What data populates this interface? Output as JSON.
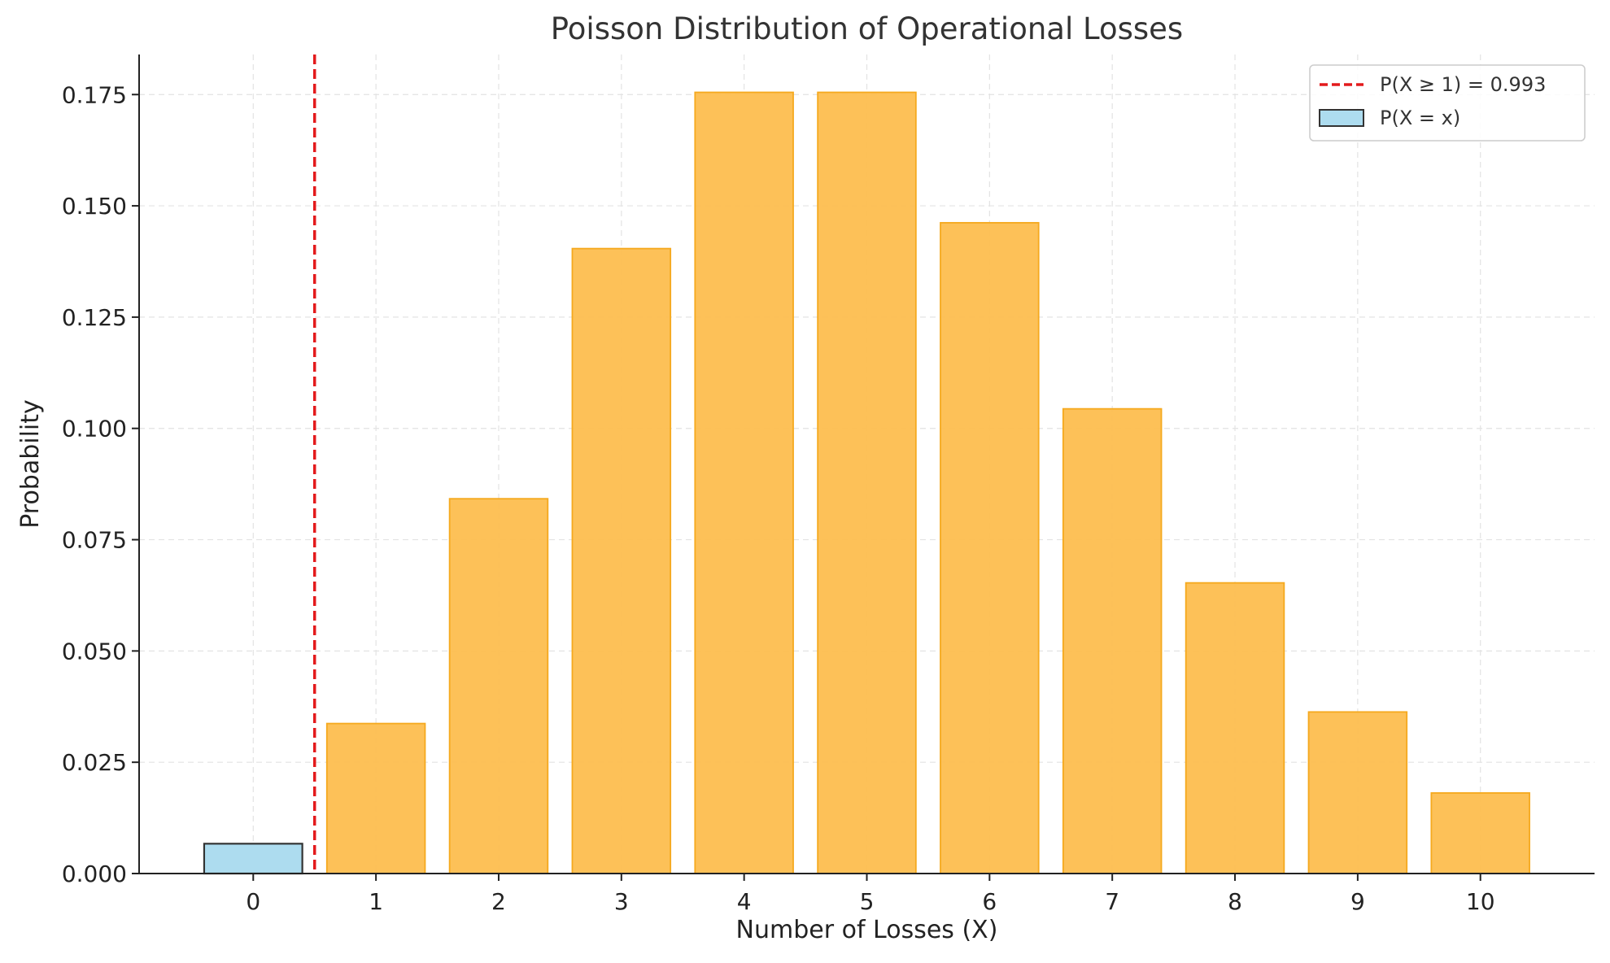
{
  "chart_data": {
    "type": "bar",
    "title": "Poisson Distribution of Operational Losses",
    "xlabel": "Number of Losses (X)",
    "ylabel": "Probability",
    "categories": [
      "0",
      "1",
      "2",
      "3",
      "4",
      "5",
      "6",
      "7",
      "8",
      "9",
      "10"
    ],
    "x": [
      0,
      1,
      2,
      3,
      4,
      5,
      6,
      7,
      8,
      9,
      10
    ],
    "series": [
      {
        "name": "P(X = x)",
        "values": [
          0.0067,
          0.0337,
          0.0842,
          0.1404,
          0.1755,
          0.1755,
          0.1462,
          0.1044,
          0.0653,
          0.0363,
          0.0181
        ]
      }
    ],
    "highlight": {
      "categories": [
        "0"
      ],
      "color": "#ADDCEF",
      "edge_color": "#333333"
    },
    "bar_color": "#FDBE4F",
    "bar_edge_color": "#F5A91E",
    "reference_line": {
      "orientation": "vertical",
      "x": 0.5,
      "label": "P(X ≥ 1) = 0.993",
      "color": "#E31A1C",
      "style": "dashed"
    },
    "xlim": [
      -0.93,
      10.93
    ],
    "ylim": [
      0,
      0.184
    ],
    "yticks": [
      0.0,
      0.025,
      0.05,
      0.075,
      0.1,
      0.125,
      0.15,
      0.175
    ],
    "ytick_labels": [
      "0.000",
      "0.025",
      "0.050",
      "0.075",
      "0.100",
      "0.125",
      "0.150",
      "0.175"
    ],
    "grid": true,
    "legend_position": "top-right"
  }
}
